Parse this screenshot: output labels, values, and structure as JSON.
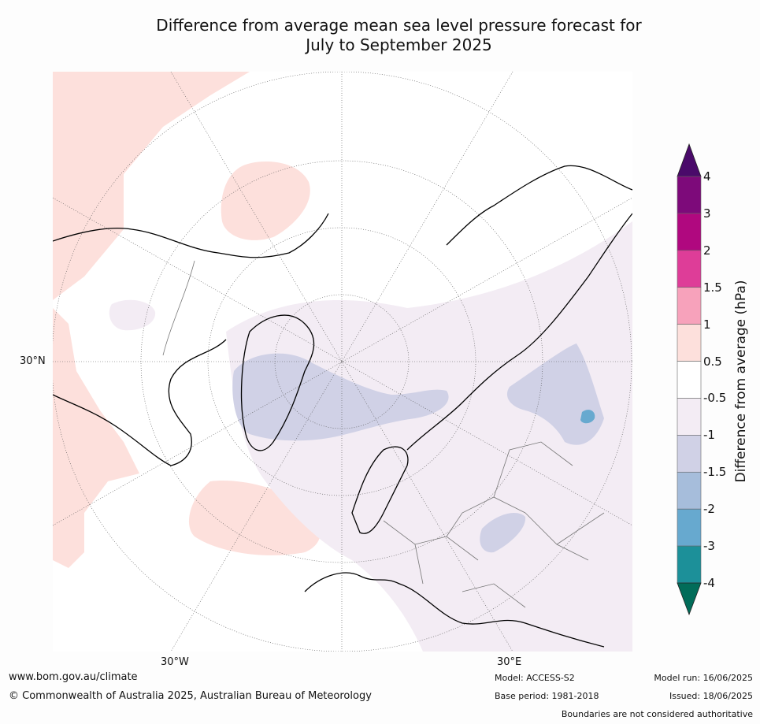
{
  "title_line1": "Difference from average mean sea level pressure forecast for",
  "title_line2": "July to September 2025",
  "map": {
    "lon_labels": {
      "west": "30°W",
      "east": "30°E"
    },
    "lat_label": "30°N"
  },
  "colorbar": {
    "title": "Difference from average (hPa)",
    "ticks": [
      "4",
      "3",
      "2",
      "1.5",
      "1",
      "0.5",
      "-0.5",
      "-1",
      "-1.5",
      "-2",
      "-3",
      "-4"
    ],
    "bins": [
      {
        "color": "#4a0a6a"
      },
      {
        "color": "#7d0a7a"
      },
      {
        "color": "#b0087f"
      },
      {
        "color": "#de3d98"
      },
      {
        "color": "#f7a2bb"
      },
      {
        "color": "#fde0dc"
      },
      {
        "color": "#ffffff"
      },
      {
        "color": "#f3ecf4"
      },
      {
        "color": "#d0d1e6"
      },
      {
        "color": "#a6bddb"
      },
      {
        "color": "#67a9cf"
      },
      {
        "color": "#1c9099"
      },
      {
        "color": "#016c59"
      }
    ]
  },
  "footer": {
    "url": "www.bom.gov.au/climate",
    "copyright": "© Commonwealth of Australia 2025, Australian Bureau of Meteorology",
    "model": "Model: ACCESS-S2",
    "base_period": "Base period: 1981-2018",
    "model_run": "Model run: 16/06/2025",
    "issued": "Issued: 18/06/2025",
    "disclaimer": "Boundaries are not considered authoritative"
  }
}
